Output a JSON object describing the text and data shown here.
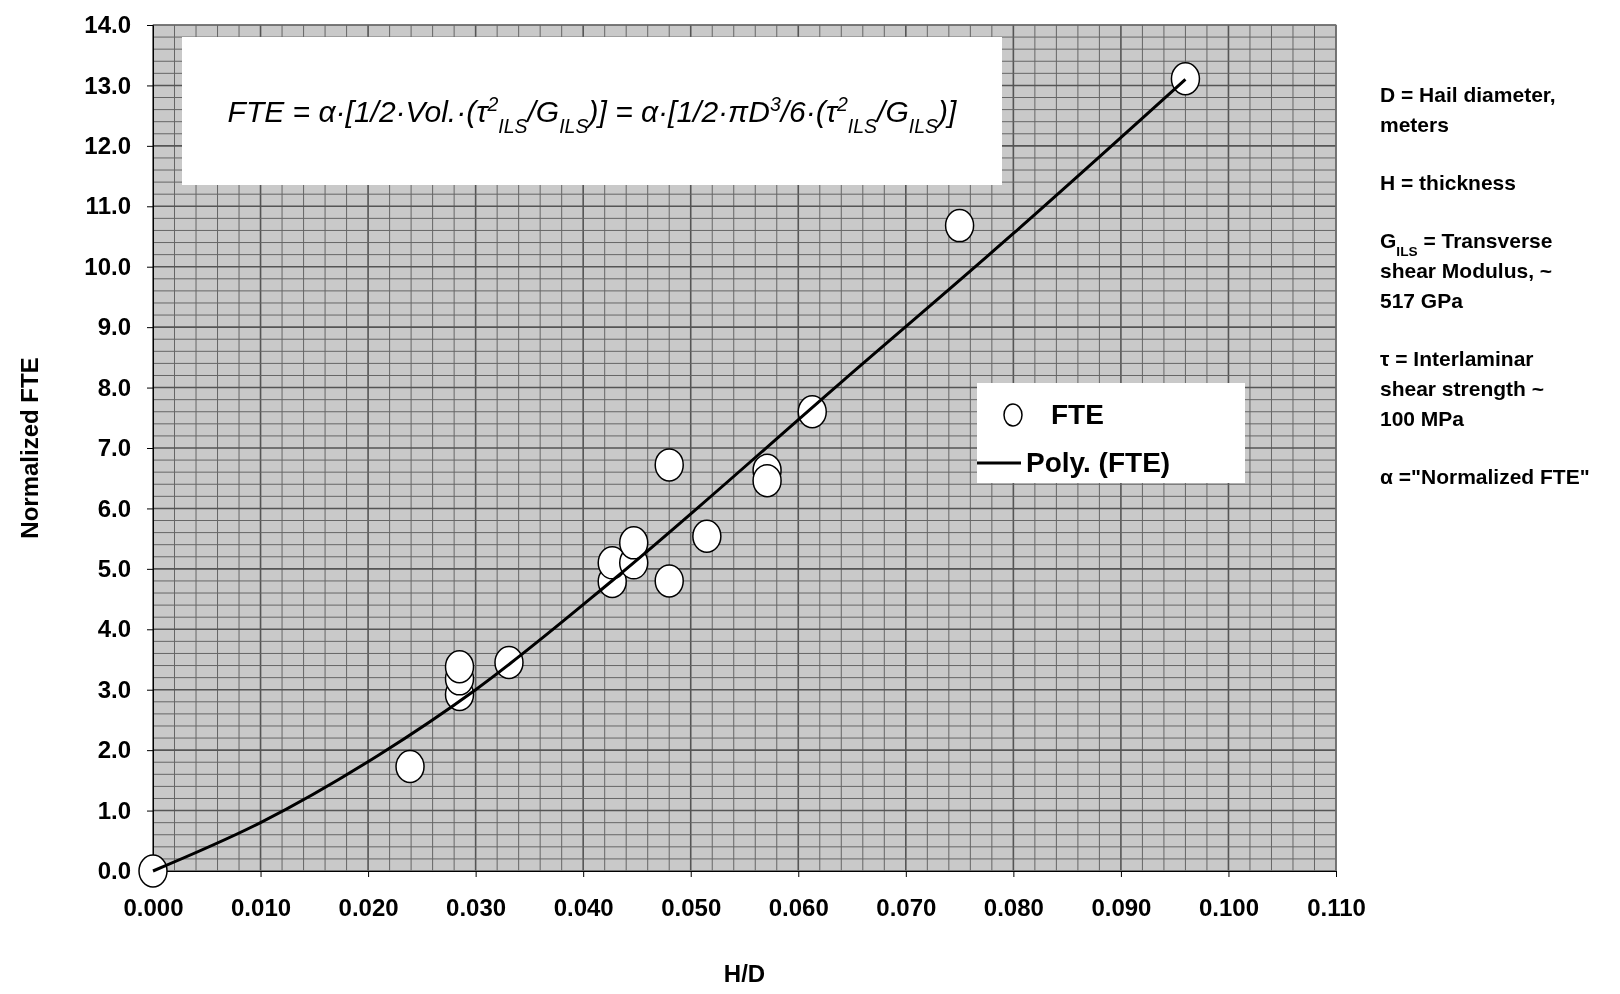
{
  "chart_data": {
    "type": "scatter",
    "xlabel": "H/D",
    "ylabel": "Normalized FTE",
    "xlim": [
      0,
      0.11
    ],
    "ylim": [
      0,
      14
    ],
    "xticks": [
      {
        "value": 0,
        "label": "0.000"
      },
      {
        "value": 0.01,
        "label": "0.010"
      },
      {
        "value": 0.02,
        "label": "0.020"
      },
      {
        "value": 0.03,
        "label": "0.030"
      },
      {
        "value": 0.04,
        "label": "0.040"
      },
      {
        "value": 0.05,
        "label": "0.050"
      },
      {
        "value": 0.06,
        "label": "0.060"
      },
      {
        "value": 0.07,
        "label": "0.070"
      },
      {
        "value": 0.08,
        "label": "0.080"
      },
      {
        "value": 0.09,
        "label": "0.090"
      },
      {
        "value": 0.1,
        "label": "0.100"
      },
      {
        "value": 0.11,
        "label": "0.110"
      }
    ],
    "yticks": [
      {
        "value": 0,
        "label": "0.0"
      },
      {
        "value": 1,
        "label": "1.0"
      },
      {
        "value": 2,
        "label": "2.0"
      },
      {
        "value": 3,
        "label": "3.0"
      },
      {
        "value": 4,
        "label": "4.0"
      },
      {
        "value": 5,
        "label": "5.0"
      },
      {
        "value": 6,
        "label": "6.0"
      },
      {
        "value": 7,
        "label": "7.0"
      },
      {
        "value": 8,
        "label": "8.0"
      },
      {
        "value": 9,
        "label": "9.0"
      },
      {
        "value": 10,
        "label": "10.0"
      },
      {
        "value": 11,
        "label": "11.0"
      },
      {
        "value": 12,
        "label": "12.0"
      },
      {
        "value": 13,
        "label": "13.0"
      },
      {
        "value": 14,
        "label": "14.0"
      }
    ],
    "grid": true,
    "legend": "right",
    "series": [
      {
        "name": "FTE",
        "marker": "circle",
        "color": "#ffffff",
        "x": [
          0,
          0.0239,
          0.0285,
          0.0285,
          0.0285,
          0.0331,
          0.0427,
          0.0427,
          0.0447,
          0.0447,
          0.048,
          0.048,
          0.0515,
          0.0571,
          0.0571,
          0.0613,
          0.075,
          0.096
        ],
        "values": [
          0,
          1.73,
          2.92,
          3.18,
          3.38,
          3.45,
          4.79,
          5.1,
          5.1,
          5.43,
          6.72,
          4.8,
          5.54,
          6.63,
          6.46,
          7.6,
          10.68,
          13.11
        ]
      },
      {
        "name": "Poly. (FTE)",
        "type": "line",
        "color": "#000000",
        "line_style": "solid",
        "marker": "none",
        "x": [
          0,
          0.01,
          0.021,
          0.03,
          0.0428,
          0.0642,
          0.08,
          0.096
        ],
        "values": [
          0,
          0.8,
          1.92,
          3.0,
          4.82,
          8.12,
          10.55,
          13.1
        ]
      }
    ],
    "annotations": [
      "FTE = α·[1/2·Vol.·(τ$^{2}$$_{ILS}$/G$_{ILS}$)] = α·[1/2·πD$^{3}$/6·(τ$^{2}$$_{ILS}$/G$_{ILS}$)]",
      "D = Hail diameter, meters",
      "H = thickness",
      "G$_{ILS}$ = Transverse shear Modulus, ~ 517 GPa",
      "τ = Interlaminar shear strength ~ 100 MPa",
      "α =\"Normalized FTE\""
    ]
  }
}
